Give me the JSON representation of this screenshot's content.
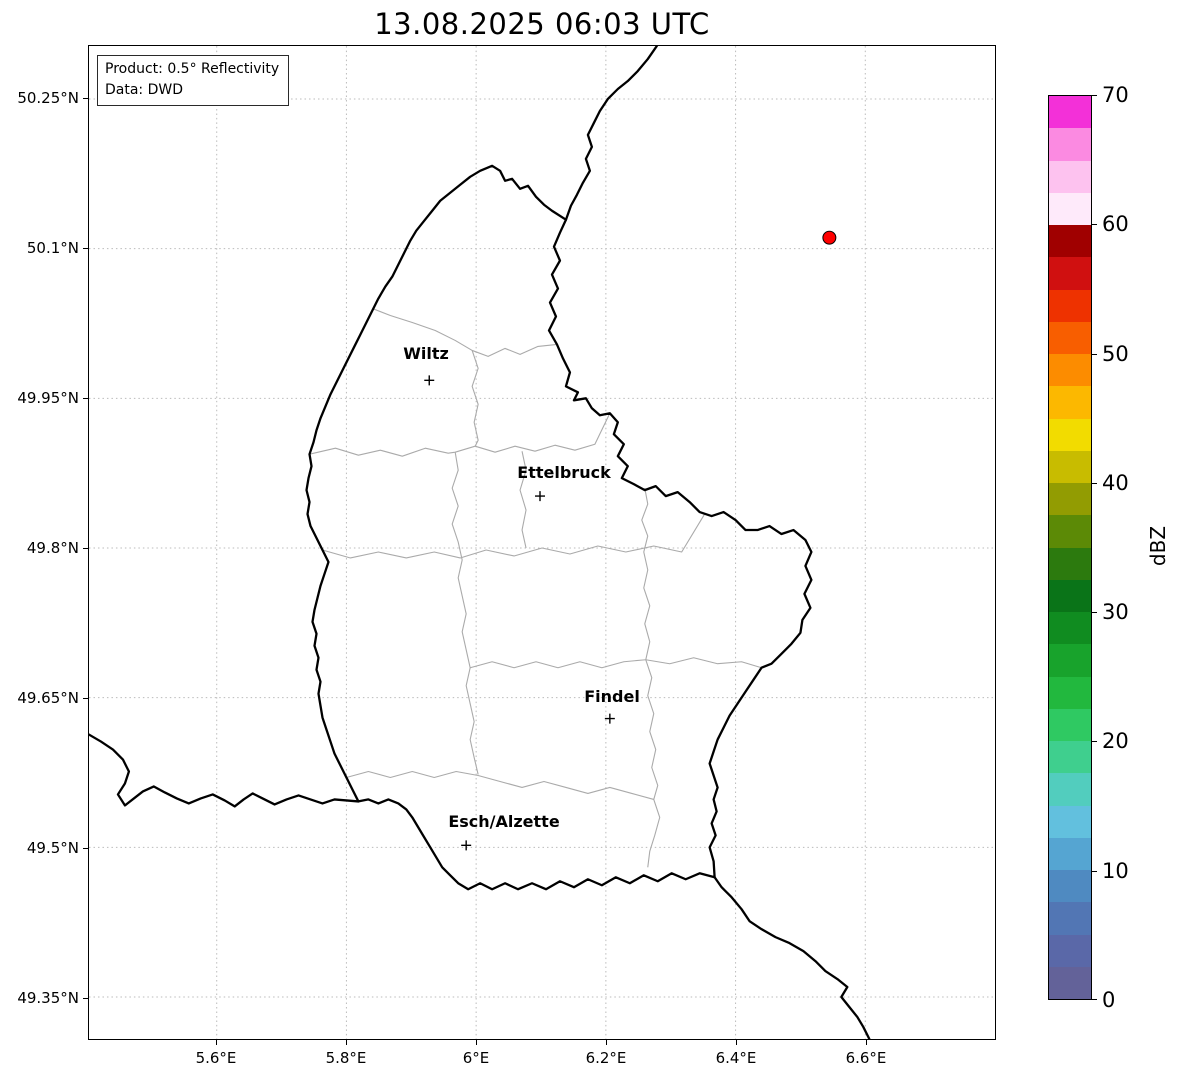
{
  "title": "13.08.2025 06:03 UTC",
  "info_box": {
    "product": "Product: 0.5° Reflectivity",
    "data_source": "Data: DWD"
  },
  "map": {
    "region": "Luxembourg",
    "cities": [
      {
        "name": "Wiltz"
      },
      {
        "name": "Ettelbruck"
      },
      {
        "name": "Findel"
      },
      {
        "name": "Esch/Alzette"
      }
    ],
    "radar_marker": {
      "color": "#ff0000",
      "approx_position": "6.55°E, 50.1°N"
    },
    "border_color": "#000000",
    "canton_border_color": "#aaaaaa",
    "grid_color": "#bbbbbb"
  },
  "axes": {
    "x_ticks": [
      "5.6°E",
      "5.8°E",
      "6°E",
      "6.2°E",
      "6.4°E",
      "6.6°E"
    ],
    "y_ticks": [
      "50.25°N",
      "50.1°N",
      "49.95°N",
      "49.8°N",
      "49.65°N",
      "49.5°N",
      "49.35°N"
    ]
  },
  "colorbar": {
    "label": "dBZ",
    "min": 0,
    "max": 70,
    "tick_labels": [
      "70",
      "60",
      "50",
      "40",
      "30",
      "20",
      "10",
      "0"
    ],
    "colors_bottom_to_top": [
      "#636299",
      "#5a68a8",
      "#5276b4",
      "#4f8ac1",
      "#55a5d2",
      "#62c0de",
      "#52cdbe",
      "#3fcf8e",
      "#2fc962",
      "#22b83e",
      "#18a32c",
      "#108c20",
      "#0a7418",
      "#2c7a0e",
      "#5c8a06",
      "#929c02",
      "#c8bc00",
      "#f2dc00",
      "#fcb800",
      "#fc8c00",
      "#f85e00",
      "#ee3200",
      "#d01010",
      "#a00000",
      "#feeafa",
      "#fdc2ef",
      "#fb8ae1",
      "#f330d8"
    ]
  }
}
